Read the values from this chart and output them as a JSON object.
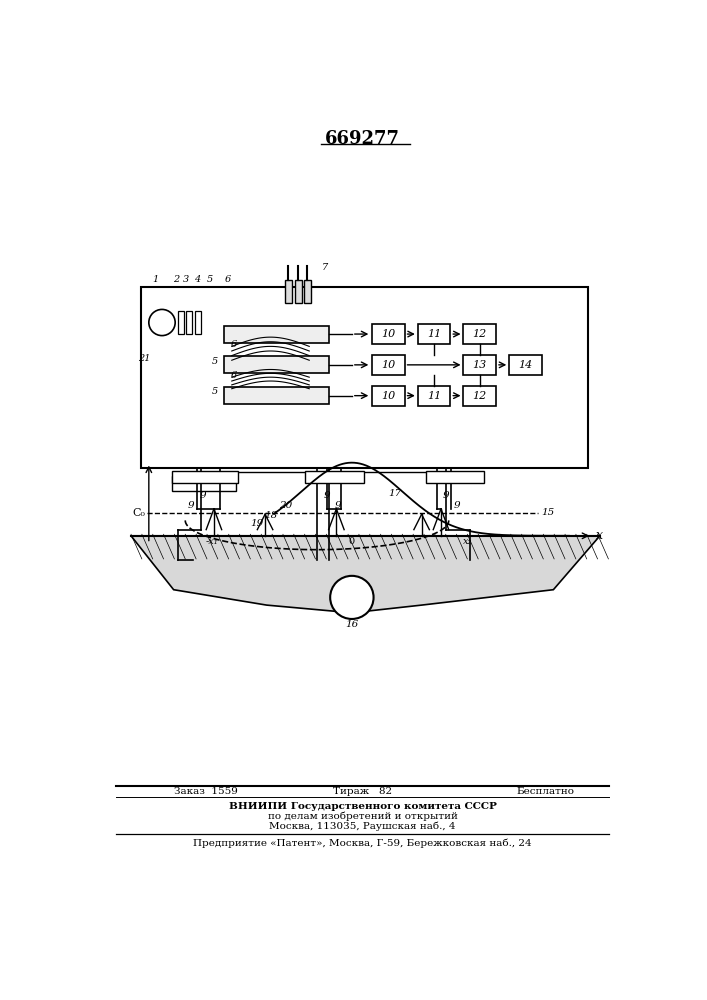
{
  "title": "669277",
  "bg_color": "#ffffff",
  "footer_line1_left": "Заказ  1559",
  "footer_line1_mid": "Тираж   82",
  "footer_line1_right": "Бесплатно",
  "footer_line2": "ВНИИПИ Государственного комитета СССР",
  "footer_line3": "по делам изобретений и открытий",
  "footer_line4": "Москва, 113035, Раушская наб., 4",
  "footer_line5": "Предприятие «Патент», Москва, Г-59, Бережковская наб., 24"
}
